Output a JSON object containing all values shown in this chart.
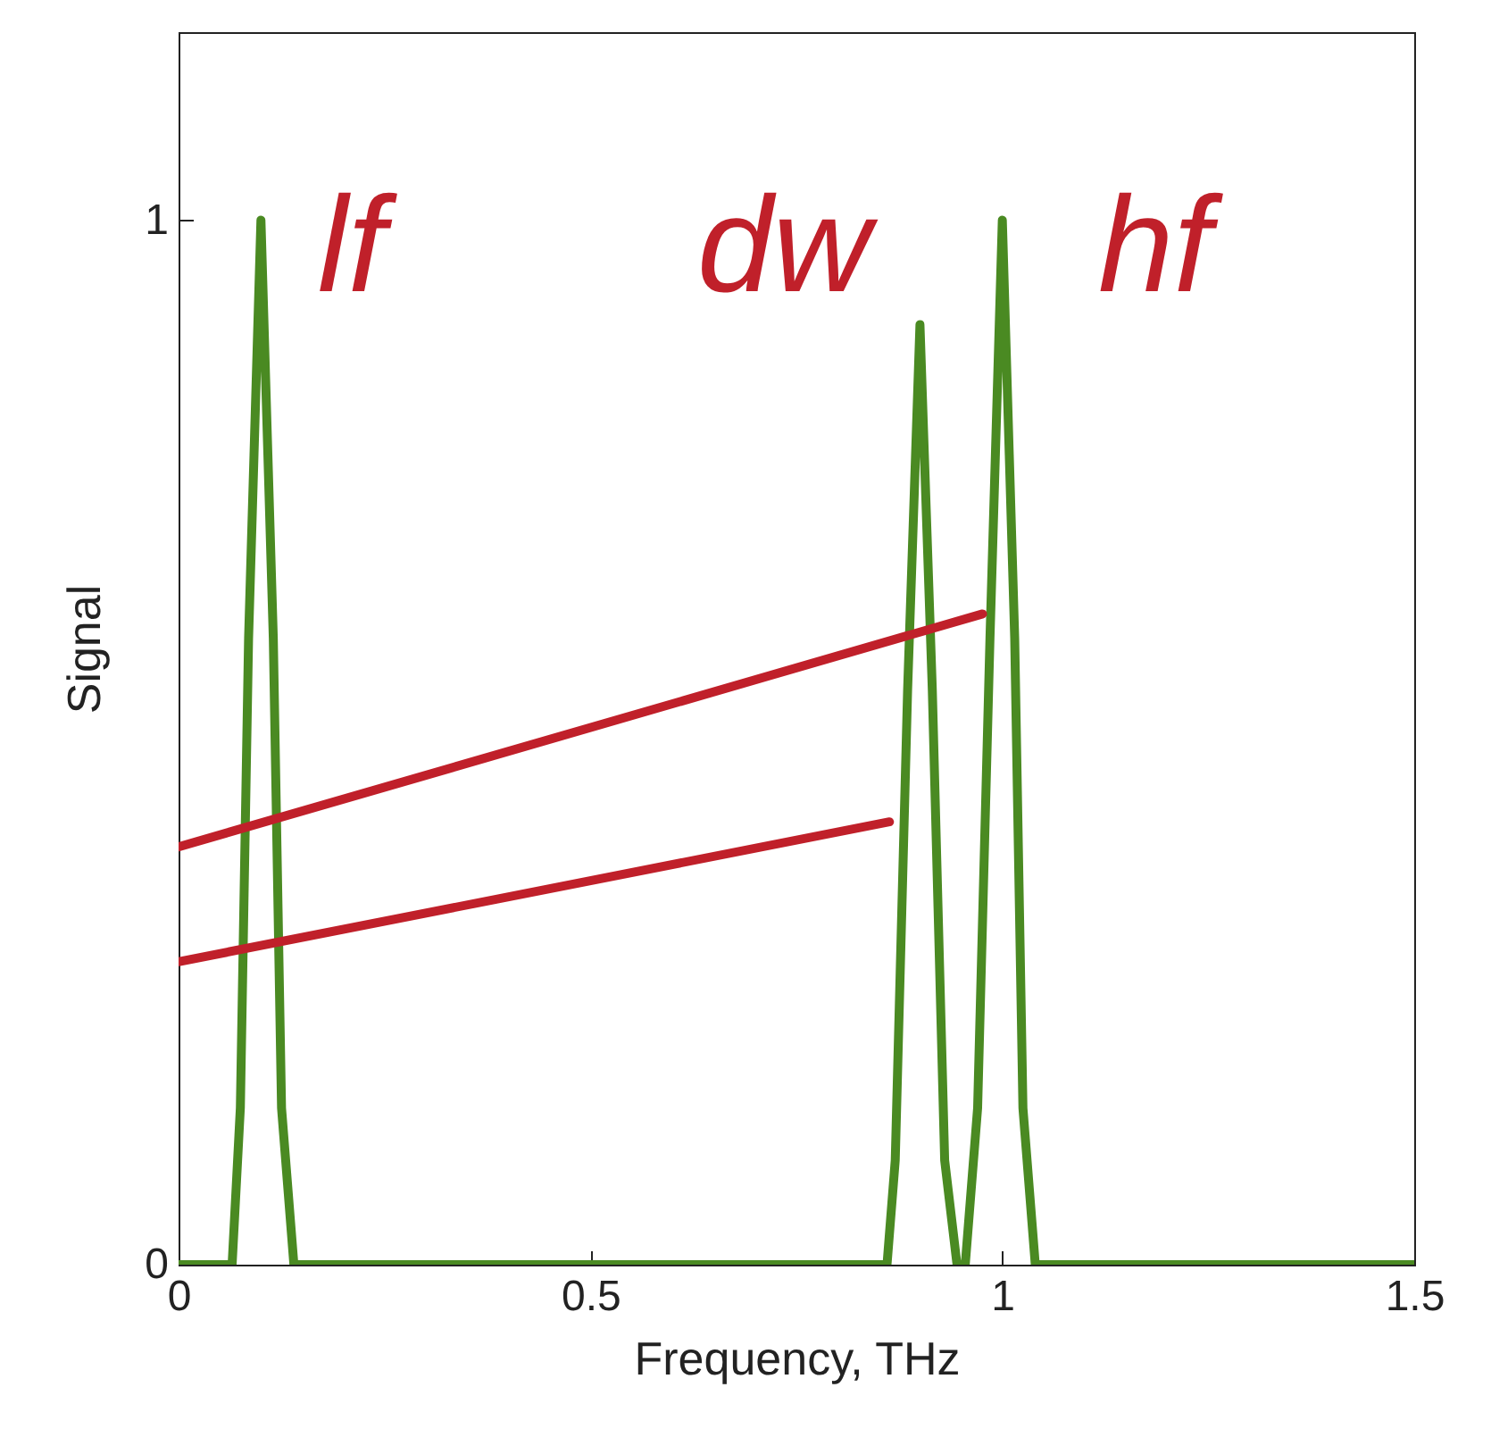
{
  "chart_data": {
    "type": "line",
    "xlabel": "Frequency, THz",
    "ylabel": "Signal",
    "xlim": [
      0,
      1.5
    ],
    "ylim": [
      0,
      1.18
    ],
    "xticks": [
      0,
      0.5,
      1,
      1.5
    ],
    "yticks": [
      0,
      1
    ],
    "grid": false,
    "series": [
      {
        "color": "#4a8a22",
        "x": [
          0,
          0.065,
          0.075,
          0.085,
          0.1,
          0.115,
          0.125,
          0.14,
          0.86,
          0.87,
          0.885,
          0.9,
          0.915,
          0.93,
          0.945,
          0.955,
          0.97,
          0.985,
          1.0,
          1.015,
          1.025,
          1.04,
          1.5
        ],
        "values": [
          0,
          0,
          0.15,
          0.6,
          1,
          0.6,
          0.15,
          0,
          0,
          0.1,
          0.55,
          0.9,
          0.55,
          0.1,
          0,
          0,
          0.15,
          0.6,
          1,
          0.6,
          0.15,
          0,
          0
        ]
      },
      {
        "color": "#c0202a",
        "x": [
          0,
          0.976
        ],
        "values": [
          0.4,
          0.623
        ]
      },
      {
        "color": "#c0202a",
        "x": [
          0,
          0.863
        ],
        "values": [
          0.29,
          0.424
        ]
      }
    ],
    "annotations": [
      "lf",
      "dw",
      "hf"
    ]
  }
}
